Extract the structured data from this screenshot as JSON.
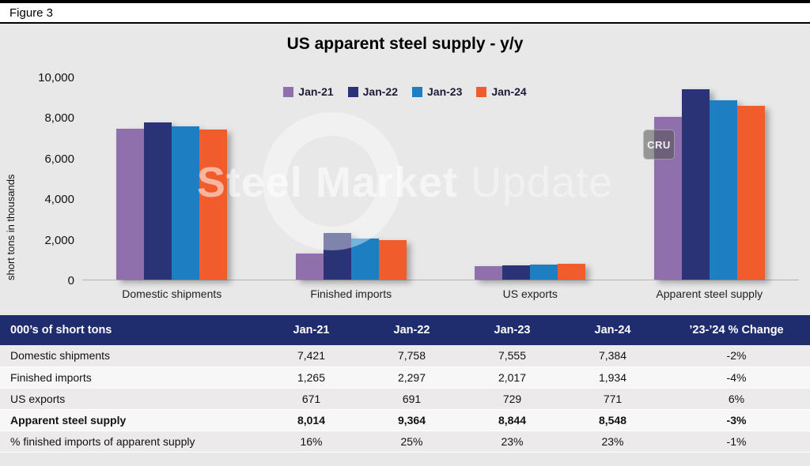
{
  "figure_label": "Figure 3",
  "watermark": {
    "bold": "Steel Market",
    "light": "Update",
    "badge": "CRU"
  },
  "chart_data": {
    "type": "bar",
    "title": "US apparent steel supply - y/y",
    "xlabel": "",
    "ylabel": "short tons in thousands",
    "ylim": [
      0,
      10000
    ],
    "grid": false,
    "legend_position": "top",
    "categories": [
      "Domestic shipments",
      "Finished imports",
      "US exports",
      "Apparent steel supply"
    ],
    "series": [
      {
        "name": "Jan-21",
        "color": "#9070ac",
        "values": [
          7421,
          1265,
          671,
          8014
        ]
      },
      {
        "name": "Jan-22",
        "color": "#2b3377",
        "values": [
          7758,
          2297,
          691,
          9364
        ]
      },
      {
        "name": "Jan-23",
        "color": "#1d7fc1",
        "values": [
          7555,
          2017,
          729,
          8844
        ]
      },
      {
        "name": "Jan-24",
        "color": "#f15c2d",
        "values": [
          7384,
          1934,
          771,
          8548
        ]
      }
    ],
    "yticks": [
      {
        "value": 0,
        "label": "0"
      },
      {
        "value": 2000,
        "label": "2,000"
      },
      {
        "value": 4000,
        "label": "4,000"
      },
      {
        "value": 6000,
        "label": "6,000"
      },
      {
        "value": 8000,
        "label": "8,000"
      },
      {
        "value": 10000,
        "label": "10,000"
      }
    ]
  },
  "table": {
    "header": [
      "000’s of short tons",
      "Jan-21",
      "Jan-22",
      "Jan-23",
      "Jan-24",
      "’23-’24 % Change"
    ],
    "rows": [
      {
        "label": "Domestic shipments",
        "values": [
          "7,421",
          "7,758",
          "7,555",
          "7,384",
          "-2%"
        ],
        "bold": false
      },
      {
        "label": "Finished imports",
        "values": [
          "1,265",
          "2,297",
          "2,017",
          "1,934",
          "-4%"
        ],
        "bold": false
      },
      {
        "label": "US exports",
        "values": [
          "671",
          "691",
          "729",
          "771",
          "6%"
        ],
        "bold": false
      },
      {
        "label": "Apparent steel supply",
        "values": [
          "8,014",
          "9,364",
          "8,844",
          "8,548",
          "-3%"
        ],
        "bold": true
      },
      {
        "label": "% finished imports of apparent supply",
        "values": [
          "16%",
          "25%",
          "23%",
          "23%",
          "-1%"
        ],
        "bold": false
      }
    ]
  }
}
